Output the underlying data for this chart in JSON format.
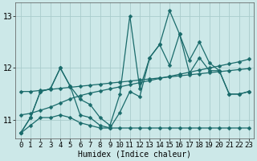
{
  "bg_color": "#cce8e8",
  "grid_color": "#aacccc",
  "line_color": "#1a6b6b",
  "xlabel": "Humidex (Indice chaleur)",
  "xlim": [
    -0.5,
    23.5
  ],
  "ylim": [
    10.65,
    13.25
  ],
  "yticks": [
    11,
    12,
    13
  ],
  "xticks": [
    0,
    1,
    2,
    3,
    4,
    5,
    6,
    7,
    8,
    9,
    10,
    11,
    12,
    13,
    14,
    15,
    16,
    17,
    18,
    19,
    20,
    21,
    22,
    23
  ],
  "sA": [
    10.75,
    11.05,
    11.55,
    11.6,
    12.0,
    11.65,
    11.4,
    11.3,
    11.05,
    10.9,
    11.5,
    13.0,
    11.6,
    12.2,
    12.45,
    13.1,
    12.65,
    12.15,
    12.5,
    12.1,
    11.95,
    11.5,
    11.5,
    11.55
  ],
  "sB": [
    10.75,
    11.05,
    11.55,
    11.6,
    12.0,
    11.65,
    11.1,
    11.05,
    10.9,
    10.85,
    11.15,
    11.55,
    11.45,
    12.2,
    12.45,
    12.05,
    12.65,
    11.9,
    12.2,
    11.95,
    11.95,
    11.5,
    11.5,
    11.55
  ],
  "sC": [
    10.75,
    10.9,
    11.05,
    11.05,
    11.1,
    11.05,
    10.95,
    10.9,
    10.85,
    10.85,
    10.85,
    10.85,
    10.85,
    10.85,
    10.85,
    10.85,
    10.85,
    10.85,
    10.85,
    10.85,
    10.85,
    10.85,
    10.85,
    10.85
  ],
  "sD": [
    11.55,
    11.55,
    11.57,
    11.59,
    11.61,
    11.63,
    11.65,
    11.67,
    11.69,
    11.71,
    11.73,
    11.75,
    11.77,
    11.79,
    11.81,
    11.83,
    11.85,
    11.87,
    11.89,
    11.91,
    11.93,
    11.95,
    11.97,
    11.99
  ],
  "sE": [
    11.1,
    11.13,
    11.19,
    11.25,
    11.33,
    11.41,
    11.47,
    11.52,
    11.56,
    11.6,
    11.64,
    11.68,
    11.72,
    11.76,
    11.8,
    11.84,
    11.88,
    11.92,
    11.96,
    12.0,
    12.04,
    12.08,
    12.12,
    12.17
  ],
  "marker_size": 2.5,
  "lw": 0.9
}
